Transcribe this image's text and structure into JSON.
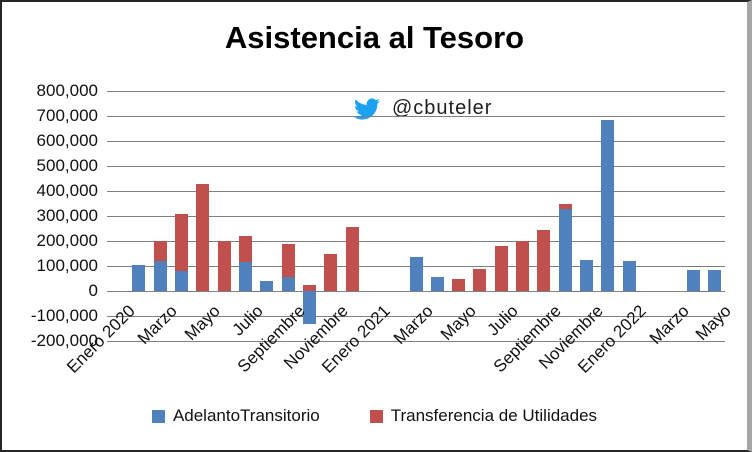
{
  "window": {
    "background": "#ffffff",
    "border_color": "#262626",
    "right_strip_color": "#a6a6a6"
  },
  "annotation": {
    "handle": "@cbuteler",
    "icon": "twitter-bird-icon",
    "icon_color": "#1DA1F2"
  },
  "chart_data": {
    "type": "bar",
    "stacked": true,
    "title": "Asistencia al Tesoro",
    "categories": [
      "Enero 2020",
      "Febrero 2020",
      "Marzo 2020",
      "Abril 2020",
      "Mayo 2020",
      "Junio 2020",
      "Julio 2020",
      "Agosto 2020",
      "Septiembre 2020",
      "Octubre 2020",
      "Noviembre 2020",
      "Diciembre 2020",
      "Enero 2021",
      "Febrero 2021",
      "Marzo 2021",
      "Abril 2021",
      "Mayo 2021",
      "Junio 2021",
      "Julio 2021",
      "Agosto 2021",
      "Septiembre 2021",
      "Octubre 2021",
      "Noviembre 2021",
      "Diciembre 2021",
      "Enero 2022",
      "Febrero 2022",
      "Marzo 2022",
      "Abril 2022",
      "Mayo 2022"
    ],
    "series": [
      {
        "name": "AdelantoTransitorio",
        "color": "#4F81BD",
        "values": [
          0,
          105000,
          120000,
          80000,
          0,
          0,
          115000,
          40000,
          55000,
          -130000,
          0,
          0,
          0,
          0,
          135000,
          55000,
          0,
          0,
          0,
          0,
          0,
          330000,
          125000,
          685000,
          120000,
          0,
          0,
          85000,
          85000
        ]
      },
      {
        "name": "Transferencia de Utilidades",
        "color": "#C0504D",
        "values": [
          0,
          0,
          80000,
          230000,
          430000,
          200000,
          105000,
          0,
          135000,
          25000,
          150000,
          255000,
          0,
          0,
          0,
          0,
          50000,
          90000,
          180000,
          200000,
          245000,
          20000,
          0,
          0,
          0,
          0,
          0,
          0,
          0
        ]
      }
    ],
    "ylim": [
      -200000,
      800000
    ],
    "y_tick_step": 100000,
    "y_tick_labels": [
      "800,000",
      "700,000",
      "600,000",
      "500,000",
      "400,000",
      "300,000",
      "200,000",
      "100,000",
      "0",
      "-100,000",
      "-200,000"
    ],
    "x_tick_labels": [
      "Enero 2020",
      "Marzo",
      "Mayo",
      "Julio",
      "Septiembre",
      "Noviembre",
      "Enero 2021",
      "Marzo",
      "Mayo",
      "Julio",
      "Septiembre",
      "Noviembre",
      "Enero 2022",
      "Marzo",
      "Mayo"
    ],
    "x_tick_every": 2,
    "grid": true,
    "gridline_color": "#808080",
    "legend_position": "bottom"
  }
}
